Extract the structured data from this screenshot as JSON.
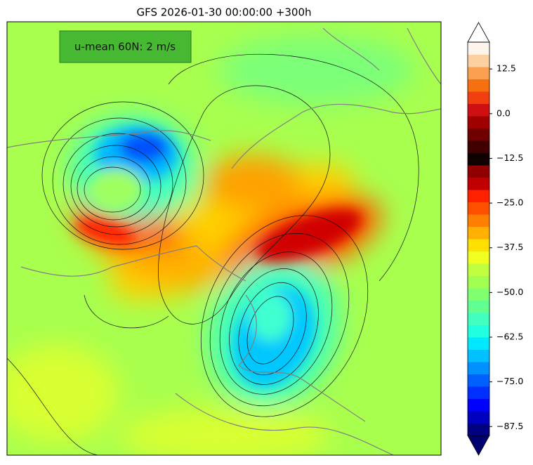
{
  "title": "GFS 2026-01-30 00:00:00 +300h",
  "annotation": "u-mean 60N: 2 m/s",
  "colorbar": {
    "lim": [
      -90,
      20
    ],
    "ticks": [
      {
        "value": -87.5,
        "label": "−87.5"
      },
      {
        "value": -75,
        "label": "−75.0"
      },
      {
        "value": -62.5,
        "label": "−62.5"
      },
      {
        "value": -50,
        "label": "−50.0"
      },
      {
        "value": -37.5,
        "label": "−37.5"
      },
      {
        "value": -25,
        "label": "−25.0"
      },
      {
        "value": -12.5,
        "label": "−12.5"
      },
      {
        "value": 0,
        "label": "0.0"
      },
      12.5
    ],
    "colors": [
      "#000080",
      "#0000c0",
      "#0000ff",
      "#0030ff",
      "#0060ff",
      "#0090ff",
      "#00c0ff",
      "#00e8ff",
      "#20ffe0",
      "#40ffc0",
      "#60ff90",
      "#80ff70",
      "#a0ff50",
      "#c0ff40",
      "#f0ff20",
      "#ffe000",
      "#ffb000",
      "#ff8000",
      "#ff5000",
      "#ff2000",
      "#c00000",
      "#900000",
      "#100000",
      "#400000",
      "#700000",
      "#a00000",
      "#d01010",
      "#f04010",
      "#f77010",
      "#fba050",
      "#fcd0a0",
      "#fdf5ec"
    ],
    "under_color": "#000070",
    "over_color": "#ffffff"
  }
}
